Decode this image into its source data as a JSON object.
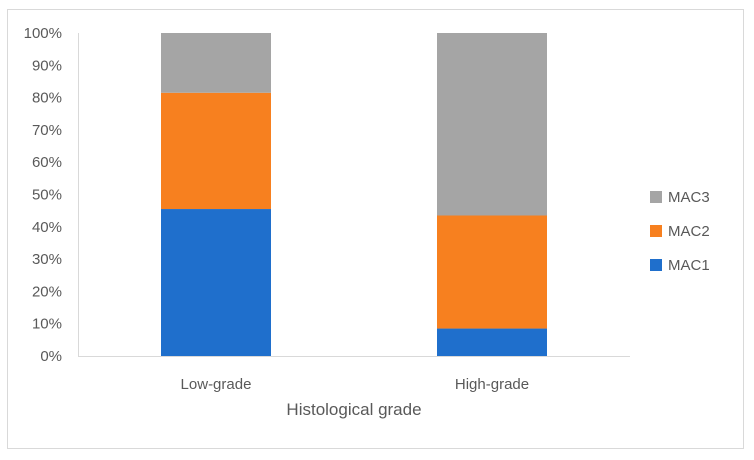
{
  "chart_data": {
    "type": "bar",
    "stacked": true,
    "percent_stacked": true,
    "title": "",
    "xlabel": "Histological grade",
    "ylabel": "",
    "ylim": [
      0,
      100
    ],
    "y_ticks": [
      "0%",
      "10%",
      "20%",
      "30%",
      "40%",
      "50%",
      "60%",
      "70%",
      "80%",
      "90%",
      "100%"
    ],
    "categories": [
      "Low-grade",
      "High-grade"
    ],
    "series": [
      {
        "name": "MAC1",
        "values": [
          45.5,
          8.5
        ],
        "color": "#1f6fcc"
      },
      {
        "name": "MAC2",
        "values": [
          36.0,
          35.0
        ],
        "color": "#f7801f"
      },
      {
        "name": "MAC3",
        "values": [
          18.5,
          56.5
        ],
        "color": "#a5a5a5"
      }
    ],
    "legend_position": "right",
    "legend_order": [
      "MAC3",
      "MAC2",
      "MAC1"
    ],
    "grid": false
  }
}
